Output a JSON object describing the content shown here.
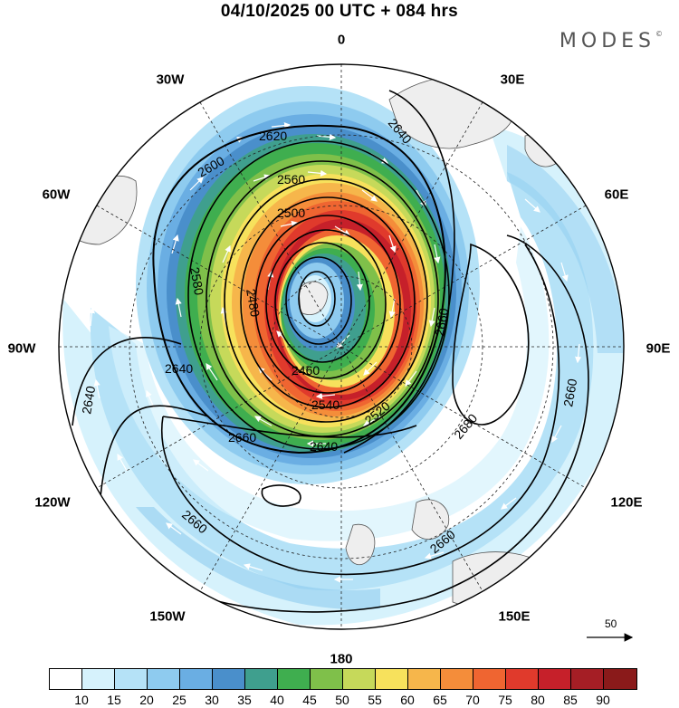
{
  "header": {
    "title": "04/10/2025  00 UTC  + 084 hrs",
    "brand": "MODES",
    "brand_mark": "©"
  },
  "map": {
    "projection": "south polar stereographic",
    "longitude_labels": [
      {
        "id": "lon-0",
        "text": "0"
      },
      {
        "id": "lon-30e",
        "text": "30E"
      },
      {
        "id": "lon-60e",
        "text": "60E"
      },
      {
        "id": "lon-90e",
        "text": "90E"
      },
      {
        "id": "lon-120e",
        "text": "120E"
      },
      {
        "id": "lon-150e",
        "text": "150E"
      },
      {
        "id": "lon-180",
        "text": "180"
      },
      {
        "id": "lon-150w",
        "text": "150W"
      },
      {
        "id": "lon-120w",
        "text": "120W"
      },
      {
        "id": "lon-90w",
        "text": "90W"
      },
      {
        "id": "lon-60w",
        "text": "60W"
      },
      {
        "id": "lon-30w",
        "text": "30W"
      }
    ],
    "contour_labels": [
      "2640",
      "2620",
      "2600",
      "2580",
      "2560",
      "2540",
      "2520",
      "2500",
      "2480",
      "2460",
      "2660",
      "2680"
    ],
    "wind_reference_label": "50"
  },
  "colorbar": {
    "ticks": [
      "10",
      "15",
      "20",
      "25",
      "30",
      "35",
      "40",
      "45",
      "50",
      "55",
      "60",
      "65",
      "70",
      "75",
      "80",
      "85",
      "90"
    ],
    "colors": [
      "#ffffff",
      "#d6f2fc",
      "#b5e2f7",
      "#8ecbef",
      "#6aaee3",
      "#4a8fcb",
      "#3f9f8e",
      "#3fae4f",
      "#7fc04a",
      "#c6d95a",
      "#f7e15c",
      "#f6b64b",
      "#f48d3a",
      "#ef6531",
      "#e03a2c",
      "#c6202a",
      "#a51e25",
      "#8a1a1a"
    ]
  }
}
